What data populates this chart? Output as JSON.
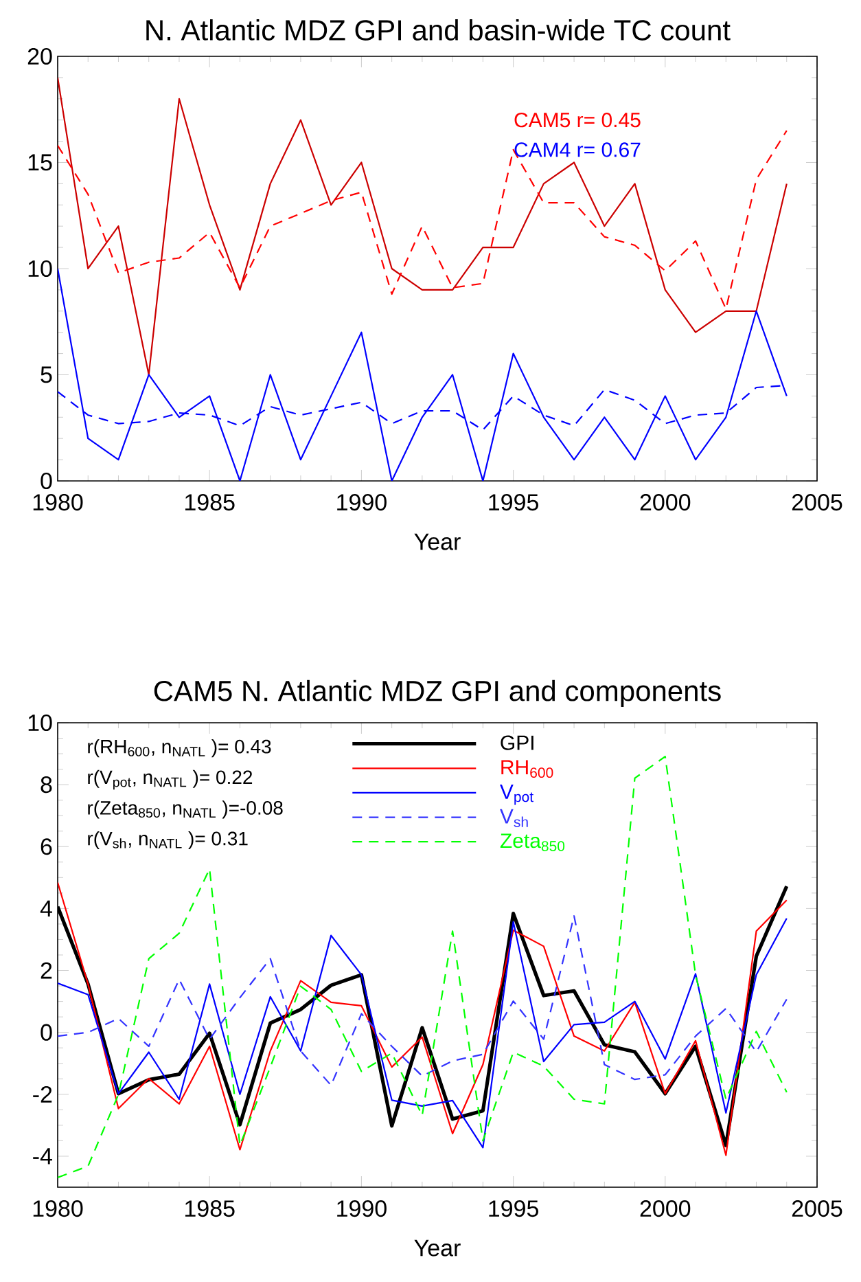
{
  "chart_data": [
    {
      "type": "line",
      "title": "N. Atlantic MDZ GPI and basin-wide TC count",
      "xlabel": "Year",
      "x": [
        1980,
        1981,
        1982,
        1983,
        1984,
        1985,
        1986,
        1987,
        1988,
        1989,
        1990,
        1991,
        1992,
        1993,
        1994,
        1995,
        1996,
        1997,
        1998,
        1999,
        2000,
        2001,
        2002,
        2003,
        2004
      ],
      "series": [
        {
          "color": "#cc0000",
          "line_style": "solid",
          "values": [
            19,
            10,
            12,
            5,
            18,
            13,
            9,
            14,
            17,
            13,
            15,
            10,
            9,
            9,
            11,
            11,
            14,
            15,
            12,
            14,
            9,
            7,
            8,
            8,
            14
          ]
        },
        {
          "color": "#ff0000",
          "line_style": "dashed",
          "values": [
            15.8,
            13.5,
            9.8,
            10.3,
            10.5,
            11.7,
            9.1,
            12.0,
            12.6,
            13.2,
            13.6,
            8.8,
            12.0,
            9.1,
            9.3,
            15.6,
            13.1,
            13.1,
            11.5,
            11.1,
            9.9,
            11.3,
            8.1,
            14.2,
            16.5
          ]
        },
        {
          "color": "#0000ff",
          "line_style": "solid",
          "values": [
            10,
            2,
            1,
            5,
            3,
            4,
            0,
            5,
            1,
            4,
            7,
            0,
            3,
            5,
            0,
            6,
            3,
            1,
            3,
            1,
            4,
            1,
            3,
            8,
            4
          ]
        },
        {
          "color": "#0000ff",
          "line_style": "dashed",
          "values": [
            4.2,
            3.1,
            2.7,
            2.8,
            3.2,
            3.1,
            2.6,
            3.5,
            3.1,
            3.4,
            3.7,
            2.7,
            3.3,
            3.3,
            2.4,
            4.0,
            3.1,
            2.6,
            4.3,
            3.8,
            2.7,
            3.1,
            3.2,
            4.4,
            4.5
          ]
        }
      ],
      "annotations": [
        "CAM5 r= 0.45",
        "CAM4 r= 0.67"
      ],
      "xlim": [
        1980,
        2005
      ],
      "xticks": [
        1980,
        1985,
        1990,
        1995,
        2000,
        2005
      ],
      "ylim": [
        0,
        20
      ],
      "yticks": [
        0,
        5,
        10,
        15,
        20
      ],
      "grid": false,
      "legend": false,
      "marker": "none"
    },
    {
      "type": "line",
      "title": "CAM5 N. Atlantic MDZ GPI and components",
      "xlabel": "Year",
      "x": [
        1980,
        1981,
        1982,
        1983,
        1984,
        1985,
        1986,
        1987,
        1988,
        1989,
        1990,
        1991,
        1992,
        1993,
        1994,
        1995,
        1996,
        1997,
        1998,
        1999,
        2000,
        2001,
        2002,
        2003,
        2004
      ],
      "series": [
        {
          "name": "GPI",
          "color": "#000000",
          "line_style": "solid",
          "values": [
            4.06,
            1.56,
            -1.98,
            -1.53,
            -1.35,
            -0.03,
            -2.98,
            0.3,
            0.74,
            1.52,
            1.86,
            -3.02,
            0.15,
            -2.8,
            -2.53,
            3.84,
            1.19,
            1.34,
            -0.4,
            -0.63,
            -1.98,
            -0.45,
            -3.65,
            2.46,
            4.72
          ]
        },
        {
          "name": "RH$_{600}$",
          "color": "#ff0000",
          "line_style": "solid",
          "values": [
            4.84,
            1.56,
            -2.46,
            -1.49,
            -2.31,
            -0.45,
            -3.79,
            -0.6,
            1.67,
            0.97,
            0.86,
            -1.12,
            -0.15,
            -3.27,
            -1.04,
            3.3,
            2.78,
            -0.12,
            -0.6,
            0.97,
            -1.98,
            -0.27,
            -3.97,
            3.27,
            4.27
          ]
        },
        {
          "name": "V$_{pot}$",
          "color": "#0000ff",
          "line_style": "solid",
          "values": [
            1.59,
            1.22,
            -1.98,
            -0.64,
            -2.16,
            1.56,
            -2.0,
            1.15,
            -0.6,
            3.13,
            1.86,
            -2.19,
            -2.38,
            -2.2,
            -3.72,
            3.57,
            -0.94,
            0.25,
            0.33,
            1.0,
            -0.86,
            1.89,
            -2.6,
            1.86,
            3.68
          ]
        },
        {
          "name": "V$_{sh}$",
          "color": "#3333ff",
          "line_style": "dashed",
          "values": [
            -0.12,
            0.0,
            0.45,
            -0.45,
            1.71,
            -0.22,
            1.12,
            2.38,
            -0.6,
            -1.71,
            0.6,
            -0.45,
            -1.41,
            -0.92,
            -0.71,
            1.01,
            -0.22,
            3.76,
            -1.04,
            -1.52,
            -1.37,
            -0.12,
            0.77,
            -0.63,
            1.07
          ]
        },
        {
          "name": "Zeta$_{850}$",
          "color": "#00ff00",
          "line_style": "dashed",
          "values": [
            -4.69,
            -4.32,
            -2.01,
            2.38,
            3.2,
            5.28,
            -3.65,
            -1.12,
            1.49,
            0.74,
            -1.26,
            -0.67,
            -2.68,
            3.27,
            -3.5,
            -0.64,
            -1.09,
            -2.16,
            -2.31,
            8.21,
            8.91,
            1.86,
            -2.16,
            0.03,
            -1.93
          ]
        }
      ],
      "annotations": [
        "r(RH$_{600}$, n$_{NATL}$ )= 0.43",
        "r(V$_{pot}$, n$_{NATL}$ )= 0.22",
        "r(Zeta$_{850}$, n$_{NATL}$ )=-0.08",
        "r(V$_{sh}$, n$_{NATL}$ )= 0.31"
      ],
      "xlim": [
        1980,
        2005
      ],
      "xticks": [
        1980,
        1985,
        1990,
        1995,
        2000,
        2005
      ],
      "ylim": [
        -5,
        10
      ],
      "yticks": [
        -4,
        -2,
        0,
        2,
        4,
        6,
        8,
        10
      ],
      "grid": false,
      "legend": "top",
      "marker": "none"
    }
  ]
}
